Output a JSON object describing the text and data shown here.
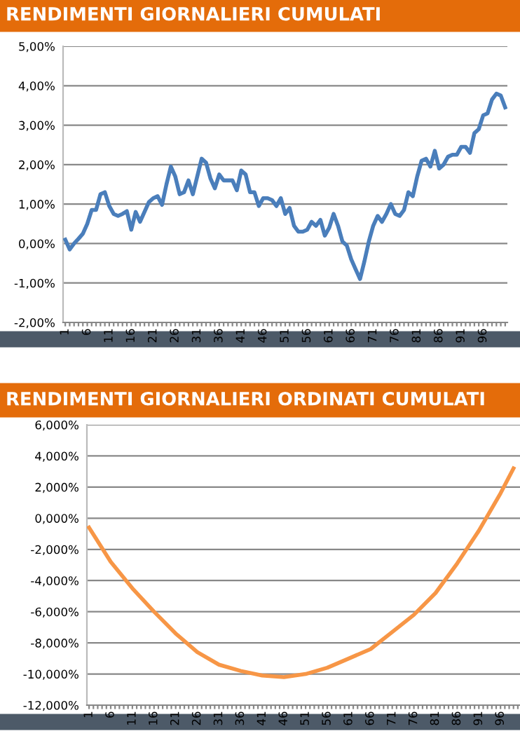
{
  "chart_data": [
    {
      "type": "line",
      "title": "RENDIMENTI GIORNALIERI CUMULATI",
      "categories": [
        "1",
        null,
        null,
        null,
        null,
        "6",
        null,
        null,
        null,
        null,
        "11",
        null,
        null,
        null,
        null,
        "16",
        null,
        null,
        null,
        null,
        "21",
        null,
        null,
        null,
        null,
        "26",
        null,
        null,
        null,
        null,
        "31",
        null,
        null,
        null,
        null,
        "36",
        null,
        null,
        null,
        null,
        "41",
        null,
        null,
        null,
        null,
        "46",
        null,
        null,
        null,
        null,
        "51",
        null,
        null,
        null,
        null,
        "56",
        null,
        null,
        null,
        null,
        "61",
        null,
        null,
        null,
        null,
        "66",
        null,
        null,
        null,
        null,
        "71",
        null,
        null,
        null,
        null,
        "76",
        null,
        null,
        null,
        null,
        "81",
        null,
        null,
        null,
        null,
        "86",
        null,
        null,
        null,
        null,
        "91",
        null,
        null,
        null,
        null,
        "96",
        null,
        null,
        null,
        null,
        null
      ],
      "series": [
        {
          "color": "#4a7ebb",
          "values": [
            0.1,
            -0.15,
            0.0,
            0.12,
            0.25,
            0.5,
            0.85,
            0.85,
            1.25,
            1.3,
            0.95,
            0.75,
            0.7,
            0.75,
            0.82,
            0.35,
            0.8,
            0.55,
            0.8,
            1.05,
            1.15,
            1.2,
            0.98,
            1.5,
            1.95,
            1.7,
            1.25,
            1.3,
            1.6,
            1.25,
            1.7,
            2.15,
            2.05,
            1.65,
            1.4,
            1.75,
            1.6,
            1.6,
            1.6,
            1.35,
            1.85,
            1.75,
            1.3,
            1.3,
            0.95,
            1.15,
            1.15,
            1.1,
            0.95,
            1.15,
            0.75,
            0.9,
            0.45,
            0.3,
            0.3,
            0.35,
            0.55,
            0.45,
            0.6,
            0.2,
            0.4,
            0.75,
            0.45,
            0.05,
            -0.05,
            -0.4,
            -0.65,
            -0.9,
            -0.45,
            0.05,
            0.45,
            0.7,
            0.55,
            0.75,
            1.0,
            0.75,
            0.7,
            0.85,
            1.3,
            1.2,
            1.7,
            2.1,
            2.15,
            1.95,
            2.35,
            1.9,
            2.0,
            2.2,
            2.25,
            2.25,
            2.45,
            2.45,
            2.3,
            2.8,
            2.9,
            3.25,
            3.3,
            3.65,
            3.8,
            3.75,
            3.45
          ]
        }
      ],
      "ylim": [
        -2,
        5
      ],
      "yticks": [
        {
          "value": -2,
          "label": "-2,00%"
        },
        {
          "value": -1,
          "label": "-1,00%"
        },
        {
          "value": 0,
          "label": "0,00%"
        },
        {
          "value": 1,
          "label": "1,00%"
        },
        {
          "value": 2,
          "label": "2,00%"
        },
        {
          "value": 3,
          "label": "3,00%"
        },
        {
          "value": 4,
          "label": "4,00%"
        },
        {
          "value": 5,
          "label": "5,00%"
        }
      ],
      "grid": "y",
      "legend": false,
      "marker": "none",
      "line_style": "solid"
    },
    {
      "type": "line",
      "title": "RENDIMENTI GIORNALIERI ORDINATI CUMULATI",
      "categories": [
        "1",
        null,
        null,
        null,
        null,
        "6",
        null,
        null,
        null,
        null,
        "11",
        null,
        null,
        null,
        null,
        "16",
        null,
        null,
        null,
        null,
        "21",
        null,
        null,
        null,
        null,
        "26",
        null,
        null,
        null,
        null,
        "31",
        null,
        null,
        null,
        null,
        "36",
        null,
        null,
        null,
        null,
        "41",
        null,
        null,
        null,
        null,
        "46",
        null,
        null,
        null,
        null,
        "51",
        null,
        null,
        null,
        null,
        "56",
        null,
        null,
        null,
        null,
        "61",
        null,
        null,
        null,
        null,
        "66",
        null,
        null,
        null,
        null,
        "71",
        null,
        null,
        null,
        null,
        "76",
        null,
        null,
        null,
        null,
        "81",
        null,
        null,
        null,
        null,
        "86",
        null,
        null,
        null,
        null,
        "91",
        null,
        null,
        null,
        null,
        "96",
        null,
        null,
        null,
        null
      ],
      "series": [
        {
          "color": "#f79646",
          "values": [
            -0.6,
            null,
            null,
            null,
            null,
            -2.8,
            null,
            null,
            null,
            null,
            -4.5,
            null,
            null,
            null,
            null,
            -6.0,
            null,
            null,
            null,
            null,
            -7.4,
            null,
            null,
            null,
            null,
            -8.6,
            null,
            null,
            null,
            null,
            -9.4,
            null,
            null,
            null,
            null,
            -9.8,
            null,
            null,
            null,
            null,
            -10.1,
            null,
            null,
            null,
            null,
            -10.2,
            null,
            null,
            null,
            null,
            -10.0,
            null,
            null,
            null,
            null,
            -9.6,
            null,
            null,
            null,
            null,
            -9.0,
            null,
            null,
            null,
            null,
            -8.4,
            null,
            null,
            null,
            null,
            -7.3,
            null,
            null,
            null,
            null,
            -6.2,
            null,
            null,
            null,
            null,
            -4.8,
            null,
            null,
            null,
            null,
            -2.9,
            null,
            null,
            null,
            null,
            -0.8,
            null,
            null,
            null,
            null,
            1.6,
            null,
            null,
            3.2,
            null
          ]
        }
      ],
      "ylim": [
        -12,
        6
      ],
      "yticks": [
        {
          "value": -12,
          "label": "-12,000%"
        },
        {
          "value": -10,
          "label": "-10,000%"
        },
        {
          "value": -8,
          "label": "-8,000%"
        },
        {
          "value": -6,
          "label": "-6,000%"
        },
        {
          "value": -4,
          "label": "-4,000%"
        },
        {
          "value": -2,
          "label": "-2,000%"
        },
        {
          "value": 0,
          "label": "0,000%"
        },
        {
          "value": 2,
          "label": "2,000%"
        },
        {
          "value": 4,
          "label": "4,000%"
        },
        {
          "value": 6,
          "label": "6,000%"
        }
      ],
      "grid": "y",
      "legend": false,
      "marker": "none",
      "line_style": "solid"
    }
  ]
}
